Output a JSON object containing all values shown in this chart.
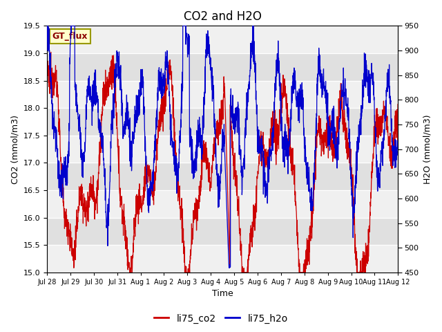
{
  "title": "CO2 and H2O",
  "xlabel": "Time",
  "ylabel_left": "CO2 (mmol/m3)",
  "ylabel_right": "H2O (mmol/m3)",
  "co2_ylim": [
    15.0,
    19.5
  ],
  "h2o_ylim": [
    450,
    950
  ],
  "co2_yticks": [
    15.0,
    15.5,
    16.0,
    16.5,
    17.0,
    17.5,
    18.0,
    18.5,
    19.0,
    19.5
  ],
  "h2o_yticks": [
    450,
    500,
    550,
    600,
    650,
    700,
    750,
    800,
    850,
    900,
    950
  ],
  "co2_color": "#cc0000",
  "h2o_color": "#0000cc",
  "background_color": "#ffffff",
  "plot_bg_color": "#e0e0e0",
  "white_band_alpha": 0.55,
  "gt_flux_label": "GT_flux",
  "gt_flux_bg": "#ffffcc",
  "gt_flux_border": "#999900",
  "legend_co2": "li75_co2",
  "legend_h2o": "li75_h2o",
  "title_fontsize": 12,
  "axis_label_fontsize": 9,
  "tick_fontsize": 8,
  "legend_fontsize": 10
}
